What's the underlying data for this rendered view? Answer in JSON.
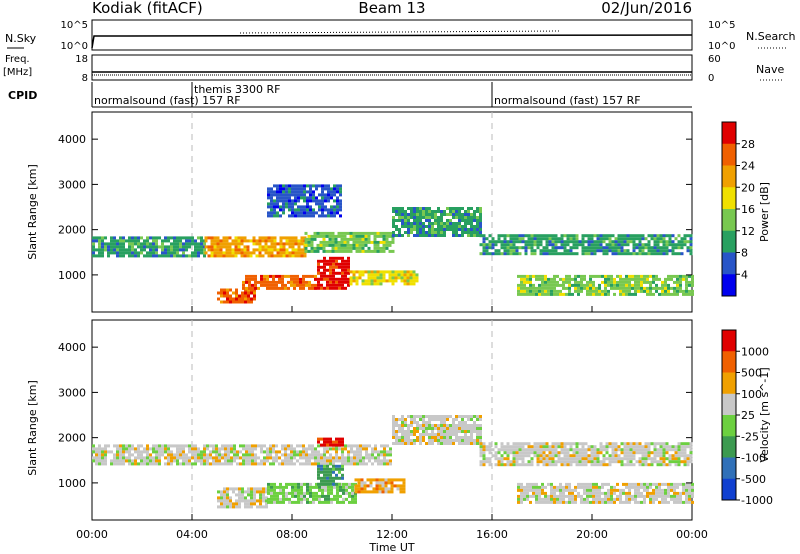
{
  "header": {
    "title_left": "Kodiak (fitACF)",
    "title_center": "Beam 13",
    "title_right": "02/Jun/2016"
  },
  "top_panels": {
    "nsky": {
      "label": "N.Sky",
      "right_label": "N.Search",
      "ticks_left": [
        "10^5",
        "10^0"
      ],
      "ticks_right": [
        "10^5",
        "10^0"
      ]
    },
    "freq": {
      "label_line1": "Freq.",
      "label_line2": "[MHz]",
      "right_label": "Nave",
      "ticks_left": [
        "18",
        "8"
      ],
      "ticks_right": [
        "60",
        "0"
      ]
    },
    "cpid": {
      "label": "CPID",
      "segments": [
        {
          "start_hour": 0,
          "text": "normalsound (fast) 157 RF"
        },
        {
          "start_hour": 4,
          "text": "themis 3300 RF"
        },
        {
          "start_hour": 16,
          "text": "normalsound (fast) 157 RF"
        }
      ]
    }
  },
  "chart_data": [
    {
      "type": "heatmap",
      "name": "power",
      "ylabel": "Slant Range [km]",
      "xlabel": "",
      "xlim": [
        0,
        24
      ],
      "ylim": [
        180,
        4600
      ],
      "yticks": [
        1000,
        2000,
        3000,
        4000
      ],
      "colorbar": {
        "label": "Power [dB]",
        "ticks": [
          "28",
          "24",
          "20",
          "16",
          "12",
          "8",
          "4"
        ],
        "colors": [
          "#0000ee",
          "#2855c8",
          "#28a060",
          "#78c850",
          "#f0e000",
          "#f0a000",
          "#f06000",
          "#e00000"
        ]
      },
      "regions": [
        {
          "t0": 0.0,
          "t1": 4.5,
          "r0": 1400,
          "r1": 1850,
          "level": 2
        },
        {
          "t0": 4.5,
          "t1": 8.5,
          "r0": 1450,
          "r1": 1850,
          "level": 5
        },
        {
          "t0": 8.5,
          "t1": 12.0,
          "r0": 1500,
          "r1": 1950,
          "level": 3
        },
        {
          "t0": 12.0,
          "t1": 15.5,
          "r0": 1900,
          "r1": 2500,
          "level": 2
        },
        {
          "t0": 15.5,
          "t1": 24.0,
          "r0": 1450,
          "r1": 1900,
          "level": 2
        },
        {
          "t0": 5.0,
          "t1": 6.5,
          "r0": 400,
          "r1": 700,
          "level": 6
        },
        {
          "t0": 6.0,
          "t1": 9.0,
          "r0": 700,
          "r1": 1000,
          "level": 6
        },
        {
          "t0": 9.0,
          "t1": 10.3,
          "r0": 700,
          "r1": 1400,
          "level": 7
        },
        {
          "t0": 10.3,
          "t1": 13.0,
          "r0": 800,
          "r1": 1100,
          "level": 4
        },
        {
          "t0": 17.0,
          "t1": 24.0,
          "r0": 600,
          "r1": 1000,
          "level": 3
        },
        {
          "t0": 7.0,
          "t1": 10.0,
          "r0": 2300,
          "r1": 3000,
          "level": 1
        }
      ]
    },
    {
      "type": "heatmap",
      "name": "velocity",
      "ylabel": "Slant Range [km]",
      "xlabel": "Time UT",
      "xlim": [
        0,
        24
      ],
      "ylim": [
        180,
        4600
      ],
      "yticks": [
        1000,
        2000,
        3000,
        4000
      ],
      "xticks": [
        "00:00",
        "04:00",
        "08:00",
        "12:00",
        "16:00",
        "20:00",
        "00:00"
      ],
      "colorbar": {
        "label": "Velocity [m s^-1]",
        "ticks": [
          "1000",
          "500",
          "100",
          "25",
          "-25",
          "-100",
          "-500",
          "-1000"
        ],
        "colors": [
          "#1040d0",
          "#3070b8",
          "#3c9a50",
          "#6cd040",
          "#c8c8c8",
          "#f0a000",
          "#f06000",
          "#e00000"
        ]
      },
      "regions": [
        {
          "t0": 0.0,
          "t1": 12.0,
          "r0": 1400,
          "r1": 1850,
          "level": 4
        },
        {
          "t0": 12.0,
          "t1": 15.5,
          "r0": 1900,
          "r1": 2500,
          "level": 4
        },
        {
          "t0": 15.5,
          "t1": 24.0,
          "r0": 1400,
          "r1": 1900,
          "level": 4
        },
        {
          "t0": 5.0,
          "t1": 7.0,
          "r0": 500,
          "r1": 900,
          "level": 4
        },
        {
          "t0": 7.0,
          "t1": 10.5,
          "r0": 600,
          "r1": 1000,
          "level": 3
        },
        {
          "t0": 9.0,
          "t1": 10.0,
          "r0": 1000,
          "r1": 1400,
          "level": 2
        },
        {
          "t0": 10.5,
          "t1": 12.5,
          "r0": 800,
          "r1": 1100,
          "level": 5
        },
        {
          "t0": 17.0,
          "t1": 24.0,
          "r0": 600,
          "r1": 1000,
          "level": 4
        },
        {
          "t0": 9.0,
          "t1": 10.0,
          "r0": 1850,
          "r1": 2000,
          "level": 7
        }
      ]
    }
  ]
}
